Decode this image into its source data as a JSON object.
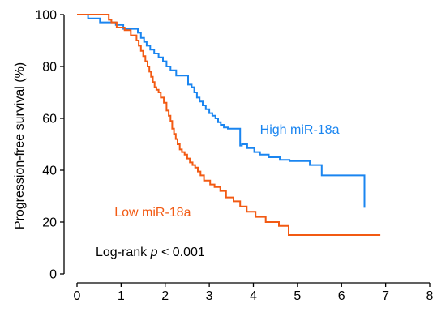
{
  "chart_data": {
    "type": "line",
    "step": true,
    "xlim": [
      0,
      8
    ],
    "ylim": [
      0,
      100
    ],
    "x_ticks": [
      "0",
      "1",
      "2",
      "3",
      "4",
      "5",
      "6",
      "7",
      "8"
    ],
    "y_ticks": [
      "0",
      "20",
      "40",
      "60",
      "80",
      "100"
    ],
    "xlabel": "",
    "ylabel": "Progression-free survival (%)",
    "grid": false,
    "annotation": {
      "prefix": "Log-rank ",
      "italic": "p",
      "suffix": " < 0.001"
    },
    "series": [
      {
        "name": "High miR-18a",
        "color": "#1a85f0",
        "x": [
          0,
          0.25,
          0.52,
          0.52,
          0.88,
          1.05,
          1.38,
          1.45,
          1.52,
          1.58,
          1.66,
          1.75,
          1.85,
          1.95,
          2.03,
          2.12,
          2.25,
          2.4,
          2.52,
          2.6,
          2.66,
          2.72,
          2.78,
          2.85,
          2.92,
          3.0,
          3.07,
          3.14,
          3.2,
          3.26,
          3.33,
          3.42,
          3.55,
          3.7,
          3.74,
          3.86,
          4.02,
          4.15,
          4.35,
          4.48,
          4.6,
          4.82,
          5.02,
          5.28,
          5.55,
          6.0,
          6.5,
          6.52
        ],
        "y": [
          100,
          98.5,
          98.5,
          97,
          96,
          94.5,
          93,
          91,
          89.5,
          88,
          86.5,
          85,
          83.5,
          82,
          80,
          78.5,
          76.5,
          76.5,
          73,
          72,
          70,
          68,
          66.5,
          65,
          63.5,
          62,
          61,
          60,
          58.5,
          57.5,
          56.5,
          56,
          56,
          49.5,
          50,
          48.5,
          47,
          46,
          45,
          45,
          44,
          43.5,
          43.5,
          42,
          38,
          38,
          38,
          25.5
        ]
      },
      {
        "name": "Low miR-18a",
        "color": "#f25a13",
        "x": [
          0,
          0.68,
          0.72,
          0.78,
          0.9,
          1.08,
          1.22,
          1.35,
          1.4,
          1.45,
          1.5,
          1.55,
          1.6,
          1.64,
          1.68,
          1.72,
          1.76,
          1.8,
          1.85,
          1.9,
          1.97,
          2.03,
          2.08,
          2.12,
          2.16,
          2.2,
          2.24,
          2.28,
          2.33,
          2.38,
          2.44,
          2.5,
          2.56,
          2.62,
          2.68,
          2.74,
          2.8,
          2.88,
          3.02,
          3.12,
          3.25,
          3.38,
          3.55,
          3.7,
          3.85,
          4.05,
          4.28,
          4.58,
          4.8,
          6.88
        ],
        "y": [
          100,
          100,
          98,
          97,
          95,
          94,
          92,
          90,
          88,
          86,
          84,
          82,
          80,
          78,
          76,
          74,
          72,
          71,
          70,
          68,
          66,
          63,
          61,
          59,
          56,
          54,
          52,
          50,
          48,
          47,
          46,
          44.5,
          43,
          42,
          41,
          39.5,
          38,
          36,
          34.5,
          33.5,
          32,
          29.5,
          28,
          26,
          24,
          22,
          20,
          18.5,
          15,
          15
        ]
      }
    ],
    "labels": [
      {
        "text": "High miR-18a",
        "x": 4.15,
        "y": 56
      },
      {
        "text": "Low miR-18a",
        "x": 0.85,
        "y": 24
      }
    ]
  }
}
